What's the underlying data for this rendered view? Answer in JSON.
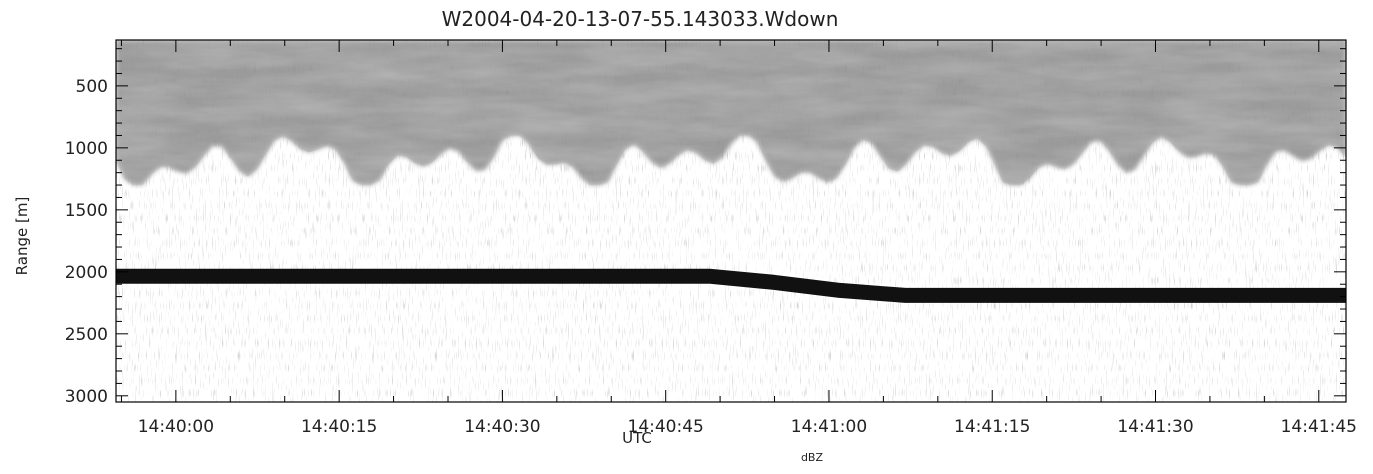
{
  "chart_data": {
    "type": "heatmap",
    "title": "W2004-04-20-13-07-55.143033.Wdown",
    "xlabel": "UTC",
    "ylabel": "Range [m]",
    "colorbar_label": "dBZ",
    "x_ticks": [
      "14:40:00",
      "14:40:15",
      "14:40:30",
      "14:40:45",
      "14:41:00",
      "14:41:15",
      "14:41:30",
      "14:41:45"
    ],
    "x_tick_seconds": [
      0,
      15,
      30,
      45,
      60,
      75,
      90,
      105
    ],
    "xlim_seconds": [
      -5.5,
      107.5
    ],
    "y_ticks": [
      500,
      1000,
      1500,
      2000,
      2500,
      3000
    ],
    "ylim": [
      130,
      3050
    ],
    "y_inverted": true,
    "colormap": "grayscale",
    "features": {
      "surface_echo": {
        "description": "strong return line",
        "points_seconds_range": [
          [
            -5.5,
            2035
          ],
          [
            49,
            2035
          ],
          [
            55,
            2085
          ],
          [
            61,
            2150
          ],
          [
            67,
            2190
          ],
          [
            107.5,
            2190
          ]
        ]
      },
      "cloud_layer": {
        "top_range": 130,
        "base_range_min": 900,
        "base_range_max": 1300
      }
    }
  }
}
